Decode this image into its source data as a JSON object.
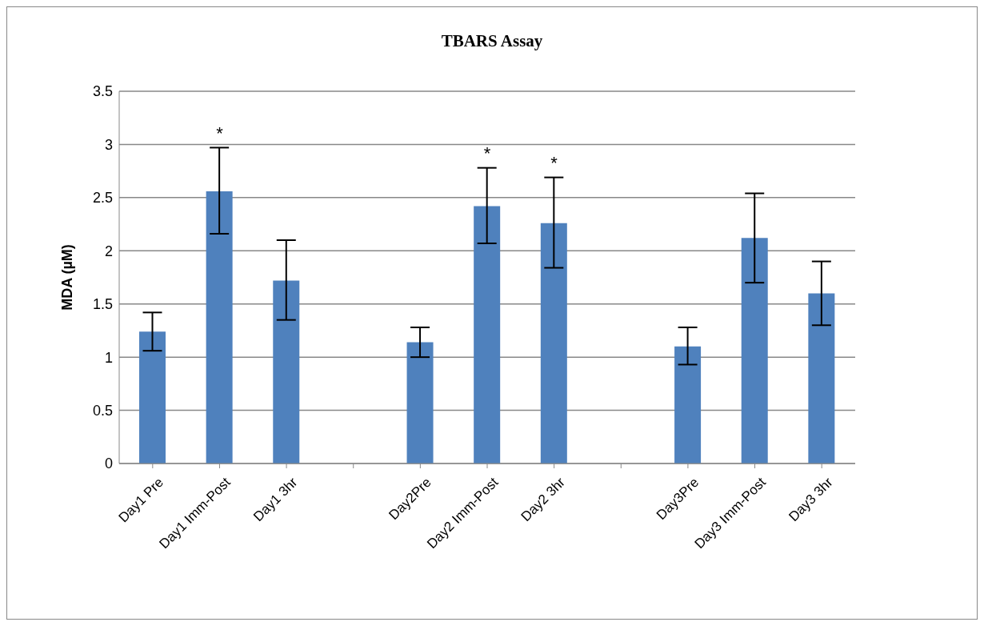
{
  "chart_data": {
    "type": "bar",
    "title": "TBARS Assay",
    "ylabel": "MDA (µM)",
    "categories": [
      "Day1 Pre",
      "Day1 Imm-Post",
      "Day1 3hr",
      null,
      "Day2Pre",
      "Day2 Imm-Post",
      "Day2 3hr",
      null,
      "Day3Pre",
      "Day3 Imm-Post",
      "Day3 3hr"
    ],
    "values": [
      1.24,
      2.56,
      1.72,
      null,
      1.14,
      2.42,
      2.26,
      null,
      1.1,
      2.12,
      1.6
    ],
    "errors": [
      [
        1.06,
        1.42
      ],
      [
        2.16,
        2.97
      ],
      [
        1.35,
        2.1
      ],
      null,
      [
        1.0,
        1.28
      ],
      [
        2.07,
        2.78
      ],
      [
        1.84,
        2.69
      ],
      null,
      [
        0.93,
        1.28
      ],
      [
        1.7,
        2.54
      ],
      [
        1.3,
        1.9
      ]
    ],
    "color": "#4f81bd",
    "ylim": [
      0,
      3.5
    ],
    "yticks": [
      0,
      0.5,
      1,
      1.5,
      2,
      2.5,
      3,
      3.5
    ],
    "grid": "y",
    "legend": false,
    "value_labels": [
      null,
      "*",
      null,
      null,
      null,
      "*",
      "*",
      null,
      null,
      null,
      null
    ]
  }
}
